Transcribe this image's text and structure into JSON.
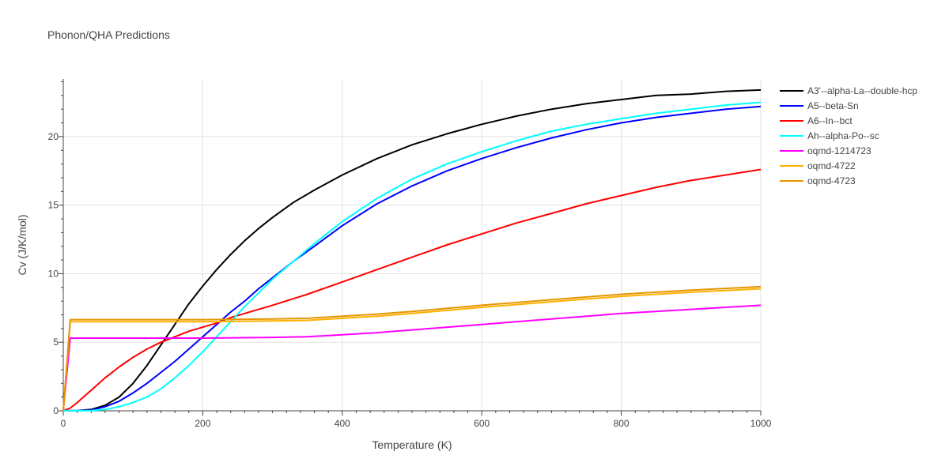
{
  "chart_data": {
    "type": "line",
    "title": "Phonon/QHA Predictions",
    "xlabel": "Temperature (K)",
    "ylabel": "Cv (J/K/mol)",
    "xlim": [
      0,
      1000
    ],
    "ylim": [
      0,
      24.2
    ],
    "x_ticks": [
      0,
      200,
      400,
      600,
      800,
      1000
    ],
    "y_ticks": [
      0,
      5,
      10,
      15,
      20
    ],
    "grid": true,
    "legend_position": "top-right, outside plot",
    "series": [
      {
        "name": "A3'--alpha-La--double-hcp",
        "color": "#000000",
        "points": [
          [
            0,
            0
          ],
          [
            20,
            0.01
          ],
          [
            40,
            0.1
          ],
          [
            60,
            0.4
          ],
          [
            80,
            1.0
          ],
          [
            100,
            2.0
          ],
          [
            120,
            3.3
          ],
          [
            140,
            4.8
          ],
          [
            160,
            6.3
          ],
          [
            180,
            7.8
          ],
          [
            200,
            9.1
          ],
          [
            220,
            10.3
          ],
          [
            240,
            11.4
          ],
          [
            260,
            12.4
          ],
          [
            280,
            13.3
          ],
          [
            300,
            14.1
          ],
          [
            330,
            15.2
          ],
          [
            360,
            16.1
          ],
          [
            400,
            17.2
          ],
          [
            450,
            18.4
          ],
          [
            500,
            19.4
          ],
          [
            550,
            20.2
          ],
          [
            600,
            20.9
          ],
          [
            650,
            21.5
          ],
          [
            700,
            22.0
          ],
          [
            750,
            22.4
          ],
          [
            800,
            22.7
          ],
          [
            850,
            23.0
          ],
          [
            900,
            23.1
          ],
          [
            950,
            23.3
          ],
          [
            1000,
            23.4
          ]
        ]
      },
      {
        "name": "A5--beta-Sn",
        "color": "#0000ff",
        "points": [
          [
            0,
            0
          ],
          [
            20,
            0.01
          ],
          [
            40,
            0.05
          ],
          [
            60,
            0.3
          ],
          [
            80,
            0.7
          ],
          [
            100,
            1.3
          ],
          [
            120,
            2.0
          ],
          [
            140,
            2.8
          ],
          [
            160,
            3.6
          ],
          [
            180,
            4.5
          ],
          [
            200,
            5.4
          ],
          [
            220,
            6.3
          ],
          [
            240,
            7.2
          ],
          [
            260,
            8.0
          ],
          [
            280,
            8.9
          ],
          [
            300,
            9.7
          ],
          [
            330,
            10.9
          ],
          [
            360,
            12.0
          ],
          [
            400,
            13.5
          ],
          [
            450,
            15.1
          ],
          [
            500,
            16.4
          ],
          [
            550,
            17.5
          ],
          [
            600,
            18.4
          ],
          [
            650,
            19.2
          ],
          [
            700,
            19.9
          ],
          [
            750,
            20.5
          ],
          [
            800,
            21.0
          ],
          [
            850,
            21.4
          ],
          [
            900,
            21.7
          ],
          [
            950,
            22.0
          ],
          [
            1000,
            22.2
          ]
        ]
      },
      {
        "name": "A6--In--bct",
        "color": "#ff0000",
        "points": [
          [
            0,
            0
          ],
          [
            10,
            0.2
          ],
          [
            20,
            0.6
          ],
          [
            40,
            1.5
          ],
          [
            60,
            2.4
          ],
          [
            80,
            3.2
          ],
          [
            100,
            3.9
          ],
          [
            120,
            4.5
          ],
          [
            140,
            5.0
          ],
          [
            160,
            5.4
          ],
          [
            180,
            5.8
          ],
          [
            200,
            6.1
          ],
          [
            220,
            6.4
          ],
          [
            240,
            6.8
          ],
          [
            260,
            7.1
          ],
          [
            280,
            7.4
          ],
          [
            300,
            7.7
          ],
          [
            350,
            8.5
          ],
          [
            400,
            9.4
          ],
          [
            450,
            10.3
          ],
          [
            500,
            11.2
          ],
          [
            550,
            12.1
          ],
          [
            600,
            12.9
          ],
          [
            650,
            13.7
          ],
          [
            700,
            14.4
          ],
          [
            750,
            15.1
          ],
          [
            800,
            15.7
          ],
          [
            850,
            16.3
          ],
          [
            900,
            16.8
          ],
          [
            950,
            17.2
          ],
          [
            1000,
            17.6
          ]
        ]
      },
      {
        "name": "Ah--alpha-Po--sc",
        "color": "#00ffff",
        "points": [
          [
            0,
            0
          ],
          [
            40,
            0.02
          ],
          [
            60,
            0.1
          ],
          [
            80,
            0.3
          ],
          [
            100,
            0.6
          ],
          [
            120,
            1.0
          ],
          [
            140,
            1.6
          ],
          [
            160,
            2.4
          ],
          [
            180,
            3.3
          ],
          [
            200,
            4.3
          ],
          [
            220,
            5.4
          ],
          [
            240,
            6.5
          ],
          [
            260,
            7.6
          ],
          [
            280,
            8.6
          ],
          [
            300,
            9.6
          ],
          [
            330,
            10.9
          ],
          [
            360,
            12.2
          ],
          [
            400,
            13.8
          ],
          [
            450,
            15.5
          ],
          [
            500,
            16.9
          ],
          [
            550,
            18.0
          ],
          [
            600,
            18.9
          ],
          [
            650,
            19.7
          ],
          [
            700,
            20.4
          ],
          [
            750,
            20.9
          ],
          [
            800,
            21.3
          ],
          [
            850,
            21.7
          ],
          [
            900,
            22.0
          ],
          [
            950,
            22.3
          ],
          [
            1000,
            22.5
          ]
        ]
      },
      {
        "name": "oqmd-1214723",
        "color": "#ff00ff",
        "points": [
          [
            0,
            0
          ],
          [
            10,
            5.3
          ],
          [
            100,
            5.3
          ],
          [
            200,
            5.3
          ],
          [
            300,
            5.35
          ],
          [
            350,
            5.4
          ],
          [
            400,
            5.55
          ],
          [
            450,
            5.7
          ],
          [
            500,
            5.9
          ],
          [
            600,
            6.3
          ],
          [
            700,
            6.7
          ],
          [
            800,
            7.1
          ],
          [
            900,
            7.4
          ],
          [
            1000,
            7.7
          ]
        ]
      },
      {
        "name": "oqmd-4722",
        "color": "#ffb000",
        "points": [
          [
            0,
            0
          ],
          [
            10,
            6.5
          ],
          [
            100,
            6.5
          ],
          [
            200,
            6.5
          ],
          [
            300,
            6.55
          ],
          [
            350,
            6.6
          ],
          [
            400,
            6.75
          ],
          [
            450,
            6.9
          ],
          [
            500,
            7.1
          ],
          [
            600,
            7.55
          ],
          [
            700,
            7.95
          ],
          [
            800,
            8.35
          ],
          [
            900,
            8.65
          ],
          [
            1000,
            8.9
          ]
        ]
      },
      {
        "name": "oqmd-4723",
        "color": "#e69500",
        "points": [
          [
            0,
            0
          ],
          [
            10,
            6.65
          ],
          [
            100,
            6.65
          ],
          [
            200,
            6.65
          ],
          [
            300,
            6.7
          ],
          [
            350,
            6.75
          ],
          [
            400,
            6.9
          ],
          [
            450,
            7.05
          ],
          [
            500,
            7.25
          ],
          [
            600,
            7.7
          ],
          [
            700,
            8.1
          ],
          [
            800,
            8.5
          ],
          [
            900,
            8.8
          ],
          [
            1000,
            9.05
          ]
        ]
      }
    ]
  }
}
